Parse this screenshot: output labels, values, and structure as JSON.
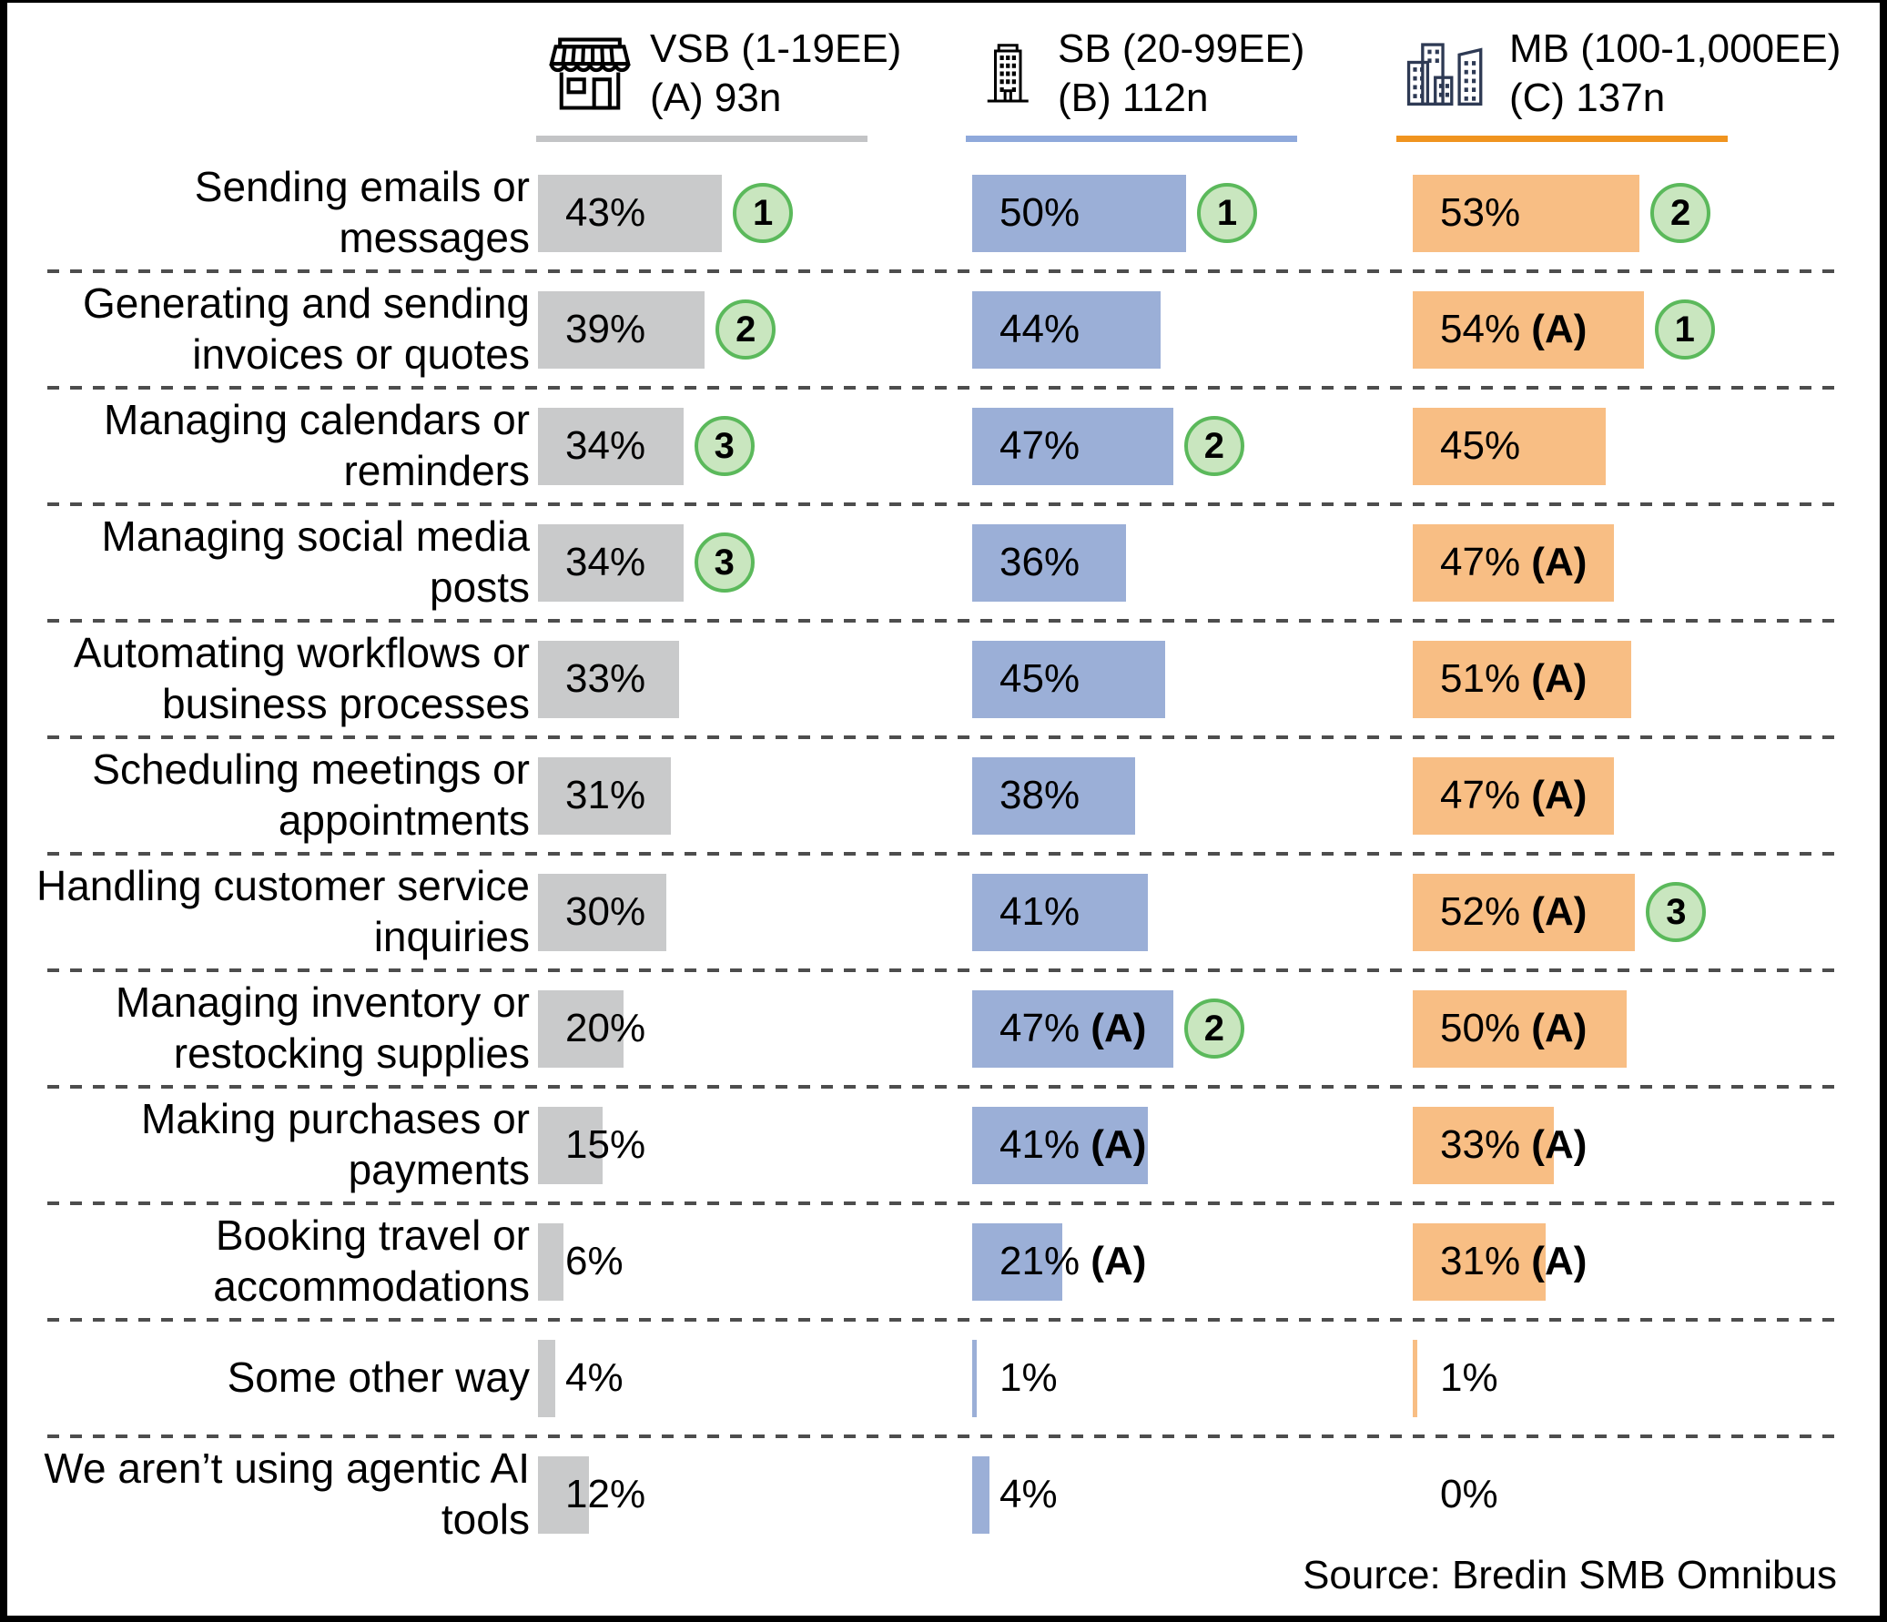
{
  "columns": [
    {
      "id": "vsb",
      "line1": "VSB (1-19EE)",
      "line2": "(A) 93n",
      "icon": "storefront-icon",
      "bar_color": "#c9cacb",
      "underline_color": "#c3c4c6"
    },
    {
      "id": "sb",
      "line1": "SB (20-99EE)",
      "line2": "(B) 112n",
      "icon": "office-building-icon",
      "bar_color": "#9bafd7",
      "underline_color": "#8fa9db"
    },
    {
      "id": "mb",
      "line1": "MB (100-1,000EE)",
      "line2": "(C) 137n",
      "icon": "city-buildings-icon",
      "bar_color": "#f8be84",
      "underline_color": "#f0941f"
    }
  ],
  "badge": {
    "fill": "#c9e6bf",
    "border": "#5bb95b"
  },
  "separator_color": "#4d4d4d",
  "source": "Source: Bredin SMB Omnibus",
  "chart_data": {
    "type": "bar",
    "orientation": "horizontal",
    "unit": "%",
    "value_range": [
      0,
      100
    ],
    "grid": false,
    "legend_position": "top",
    "categories": [
      "Sending emails or messages",
      "Generating and sending invoices or quotes",
      "Managing calendars or reminders",
      "Managing social media posts",
      "Automating workflows or business processes",
      "Scheduling meetings or appointments",
      "Handling customer service inquiries",
      "Managing inventory or restocking supplies",
      "Making purchases or payments",
      "Booking travel or accommodations",
      "Some other way",
      "We aren’t using agentic AI tools"
    ],
    "series": [
      {
        "name": "VSB (1-19EE) (A) 93n",
        "values": [
          43,
          39,
          34,
          34,
          33,
          31,
          30,
          20,
          15,
          6,
          4,
          12
        ],
        "sig_vs": [
          null,
          null,
          null,
          null,
          null,
          null,
          null,
          null,
          null,
          null,
          null,
          null
        ],
        "rank": [
          1,
          2,
          3,
          3,
          null,
          null,
          null,
          null,
          null,
          null,
          null,
          null
        ]
      },
      {
        "name": "SB (20-99EE) (B) 112n",
        "values": [
          50,
          44,
          47,
          36,
          45,
          38,
          41,
          47,
          41,
          21,
          1,
          4
        ],
        "sig_vs": [
          null,
          null,
          null,
          null,
          null,
          null,
          null,
          "A",
          "A",
          "A",
          null,
          null
        ],
        "rank": [
          1,
          null,
          2,
          null,
          null,
          null,
          null,
          2,
          null,
          null,
          null,
          null
        ]
      },
      {
        "name": "MB (100-1,000EE) (C) 137n",
        "values": [
          53,
          54,
          45,
          47,
          51,
          47,
          52,
          50,
          33,
          31,
          1,
          0
        ],
        "sig_vs": [
          null,
          "A",
          null,
          "A",
          "A",
          "A",
          "A",
          "A",
          "A",
          "A",
          null,
          null
        ],
        "rank": [
          2,
          1,
          null,
          null,
          null,
          null,
          3,
          null,
          null,
          null,
          null,
          null
        ]
      }
    ],
    "source": "Source: Bredin SMB Omnibus"
  }
}
